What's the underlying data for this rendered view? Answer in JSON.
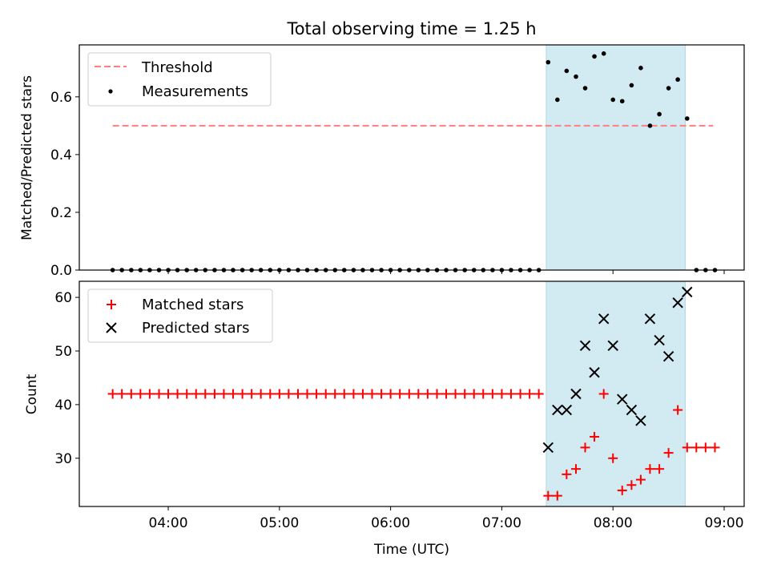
{
  "chart_data": {
    "title": "Total observing time = 1.25 h",
    "xlabel": "Time (UTC)",
    "x_tick_labels": [
      "04:00",
      "05:00",
      "06:00",
      "07:00",
      "08:00",
      "09:00"
    ],
    "x_ticks_hours": [
      4,
      5,
      6,
      7,
      8,
      9
    ],
    "xlim_hours": [
      3.2,
      9.18
    ],
    "observing_window_hours": [
      7.4,
      8.65
    ],
    "shade_color": "#add8e6",
    "panels": [
      {
        "type": "scatter",
        "ylabel": "Matched/Predicted stars",
        "ylim": [
          0,
          0.78
        ],
        "y_ticks": [
          0.0,
          0.2,
          0.4,
          0.6
        ],
        "y_tick_labels": [
          "0.0",
          "0.2",
          "0.4",
          "0.6"
        ],
        "legend_position": "top-left",
        "threshold": {
          "name": "Threshold",
          "value": 0.5,
          "x_range_hours": [
            3.5,
            8.9
          ],
          "color": "#ff7f7f"
        },
        "series": [
          {
            "name": "Measurements",
            "color": "#000000",
            "marker": "dot",
            "x_hours": [
              3.5,
              3.583,
              3.667,
              3.75,
              3.833,
              3.917,
              4.0,
              4.083,
              4.167,
              4.25,
              4.333,
              4.417,
              4.5,
              4.583,
              4.667,
              4.75,
              4.833,
              4.917,
              5.0,
              5.083,
              5.167,
              5.25,
              5.333,
              5.417,
              5.5,
              5.583,
              5.667,
              5.75,
              5.833,
              5.917,
              6.0,
              6.083,
              6.167,
              6.25,
              6.333,
              6.417,
              6.5,
              6.583,
              6.667,
              6.75,
              6.833,
              6.917,
              7.0,
              7.083,
              7.167,
              7.25,
              7.333,
              7.417,
              7.5,
              7.583,
              7.667,
              7.75,
              7.833,
              7.917,
              8.0,
              8.083,
              8.167,
              8.25,
              8.333,
              8.417,
              8.5,
              8.583,
              8.667,
              8.75,
              8.833,
              8.917
            ],
            "values": [
              0,
              0,
              0,
              0,
              0,
              0,
              0,
              0,
              0,
              0,
              0,
              0,
              0,
              0,
              0,
              0,
              0,
              0,
              0,
              0,
              0,
              0,
              0,
              0,
              0,
              0,
              0,
              0,
              0,
              0,
              0,
              0,
              0,
              0,
              0,
              0,
              0,
              0,
              0,
              0,
              0,
              0,
              0,
              0,
              0,
              0,
              0,
              0.72,
              0.59,
              0.69,
              0.67,
              0.63,
              0.74,
              0.75,
              0.59,
              0.585,
              0.64,
              0.7,
              0.5,
              0.54,
              0.63,
              0.66,
              0.525,
              0,
              0,
              0
            ]
          }
        ]
      },
      {
        "type": "scatter",
        "ylabel": "Count",
        "ylim": [
          21,
          63
        ],
        "y_ticks": [
          30,
          40,
          50,
          60
        ],
        "y_tick_labels": [
          "30",
          "40",
          "50",
          "60"
        ],
        "legend_position": "top-left",
        "series": [
          {
            "name": "Matched stars",
            "color": "#ff0000",
            "marker": "plus",
            "x_hours": [
              3.5,
              3.583,
              3.667,
              3.75,
              3.833,
              3.917,
              4.0,
              4.083,
              4.167,
              4.25,
              4.333,
              4.417,
              4.5,
              4.583,
              4.667,
              4.75,
              4.833,
              4.917,
              5.0,
              5.083,
              5.167,
              5.25,
              5.333,
              5.417,
              5.5,
              5.583,
              5.667,
              5.75,
              5.833,
              5.917,
              6.0,
              6.083,
              6.167,
              6.25,
              6.333,
              6.417,
              6.5,
              6.583,
              6.667,
              6.75,
              6.833,
              6.917,
              7.0,
              7.083,
              7.167,
              7.25,
              7.333,
              7.417,
              7.5,
              7.583,
              7.667,
              7.75,
              7.833,
              7.917,
              8.0,
              8.083,
              8.167,
              8.25,
              8.333,
              8.417,
              8.5,
              8.583,
              8.667,
              8.75,
              8.833,
              8.917
            ],
            "values": [
              42,
              42,
              42,
              42,
              42,
              42,
              42,
              42,
              42,
              42,
              42,
              42,
              42,
              42,
              42,
              42,
              42,
              42,
              42,
              42,
              42,
              42,
              42,
              42,
              42,
              42,
              42,
              42,
              42,
              42,
              42,
              42,
              42,
              42,
              42,
              42,
              42,
              42,
              42,
              42,
              42,
              42,
              42,
              42,
              42,
              42,
              42,
              23,
              23,
              27,
              28,
              32,
              34,
              42,
              30,
              24,
              25,
              26,
              28,
              28,
              31,
              39,
              32,
              32,
              32,
              32
            ]
          },
          {
            "name": "Predicted stars",
            "color": "#000000",
            "marker": "x",
            "x_hours": [
              7.417,
              7.5,
              7.583,
              7.667,
              7.75,
              7.833,
              7.917,
              8.0,
              8.083,
              8.167,
              8.25,
              8.333,
              8.417,
              8.5,
              8.583,
              8.667
            ],
            "values": [
              32,
              39,
              39,
              42,
              51,
              46,
              56,
              51,
              41,
              39,
              37,
              56,
              52,
              49,
              59,
              61
            ]
          }
        ]
      }
    ]
  }
}
